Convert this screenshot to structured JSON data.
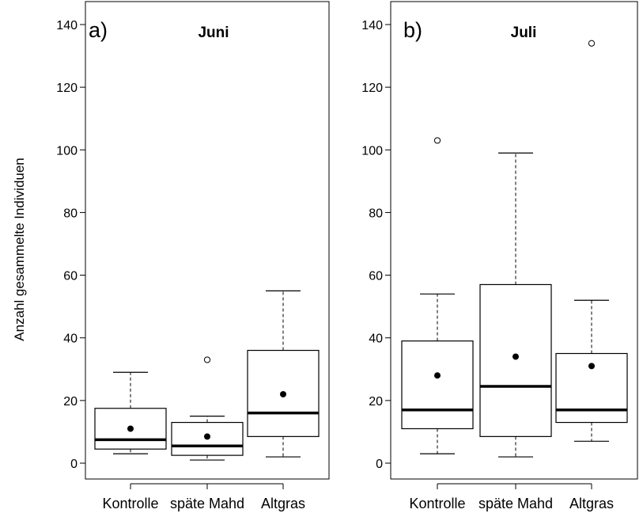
{
  "y_axis_label": "Anzahl gesammelte Individuen",
  "chart_data": [
    {
      "type": "boxplot",
      "panel_label": "a)",
      "title": "Juni",
      "ylabel": "Anzahl gesammelte Individuen",
      "ylim": [
        -5,
        140
      ],
      "yticks": [
        "0",
        "20",
        "40",
        "60",
        "80",
        "100",
        "120",
        "140"
      ],
      "yticks_values": [
        0,
        20,
        40,
        60,
        80,
        100,
        120,
        140
      ],
      "categories": [
        "Kontrolle",
        "späte Mahd",
        "Altgras"
      ],
      "boxes": [
        {
          "whisker_low": 3,
          "q1": 4.5,
          "median": 7.5,
          "q3": 17.5,
          "whisker_high": 29,
          "mean": 11,
          "outliers": []
        },
        {
          "whisker_low": 1,
          "q1": 2.5,
          "median": 5.5,
          "q3": 13,
          "whisker_high": 15,
          "mean": 8.5,
          "outliers": [
            33
          ]
        },
        {
          "whisker_low": 2,
          "q1": 8.5,
          "median": 16,
          "q3": 36,
          "whisker_high": 55,
          "mean": 22,
          "outliers": []
        }
      ]
    },
    {
      "type": "boxplot",
      "panel_label": "b)",
      "title": "Juli",
      "ylim": [
        -5,
        140
      ],
      "yticks": [
        "0",
        "20",
        "40",
        "60",
        "80",
        "100",
        "120",
        "140"
      ],
      "yticks_values": [
        0,
        20,
        40,
        60,
        80,
        100,
        120,
        140
      ],
      "categories": [
        "Kontrolle",
        "späte Mahd",
        "Altgras"
      ],
      "boxes": [
        {
          "whisker_low": 3,
          "q1": 11,
          "median": 17,
          "q3": 39,
          "whisker_high": 54,
          "mean": 28,
          "outliers": [
            103
          ]
        },
        {
          "whisker_low": 2,
          "q1": 8.5,
          "median": 24.5,
          "q3": 57,
          "whisker_high": 99,
          "mean": 34,
          "outliers": []
        },
        {
          "whisker_low": 7,
          "q1": 13,
          "median": 17,
          "q3": 35,
          "whisker_high": 52,
          "mean": 31,
          "outliers": [
            134
          ]
        }
      ]
    }
  ]
}
